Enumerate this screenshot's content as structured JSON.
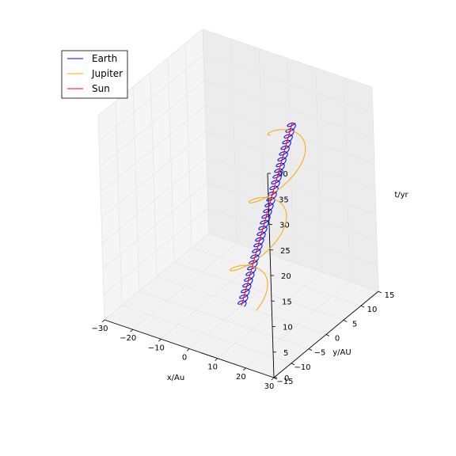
{
  "chart_data": {
    "type": "line",
    "projection": "3d",
    "xlabel": "x/Au",
    "ylabel": "y/AU",
    "zlabel": "t/yr",
    "xlim": [
      -30,
      30
    ],
    "ylim": [
      -15,
      15
    ],
    "zlim": [
      0,
      40
    ],
    "xticks": [
      -30,
      -20,
      -10,
      0,
      10,
      20,
      30
    ],
    "yticks": [
      -15,
      -10,
      -5,
      0,
      5,
      10,
      15
    ],
    "zticks": [
      0,
      5,
      10,
      15,
      20,
      25,
      30,
      35,
      40
    ],
    "grid": true,
    "legend_position": "top-left",
    "series": [
      {
        "name": "Earth",
        "color": "#0000ff",
        "kind": "circular_orbit",
        "radius": 1,
        "period": 1,
        "center_velocity": [
          0.25,
          0.3
        ],
        "t_range": [
          0,
          32
        ]
      },
      {
        "name": "Jupiter",
        "color": "#ffa500",
        "kind": "circular_orbit",
        "radius": 5.2,
        "period": 11.86,
        "center_velocity": [
          0.25,
          0.3
        ],
        "t_range": [
          0,
          32
        ]
      },
      {
        "name": "Sun",
        "color": "#ff0000",
        "kind": "linear",
        "velocity": [
          0.25,
          0.3
        ],
        "t_range": [
          0,
          32
        ]
      }
    ]
  }
}
